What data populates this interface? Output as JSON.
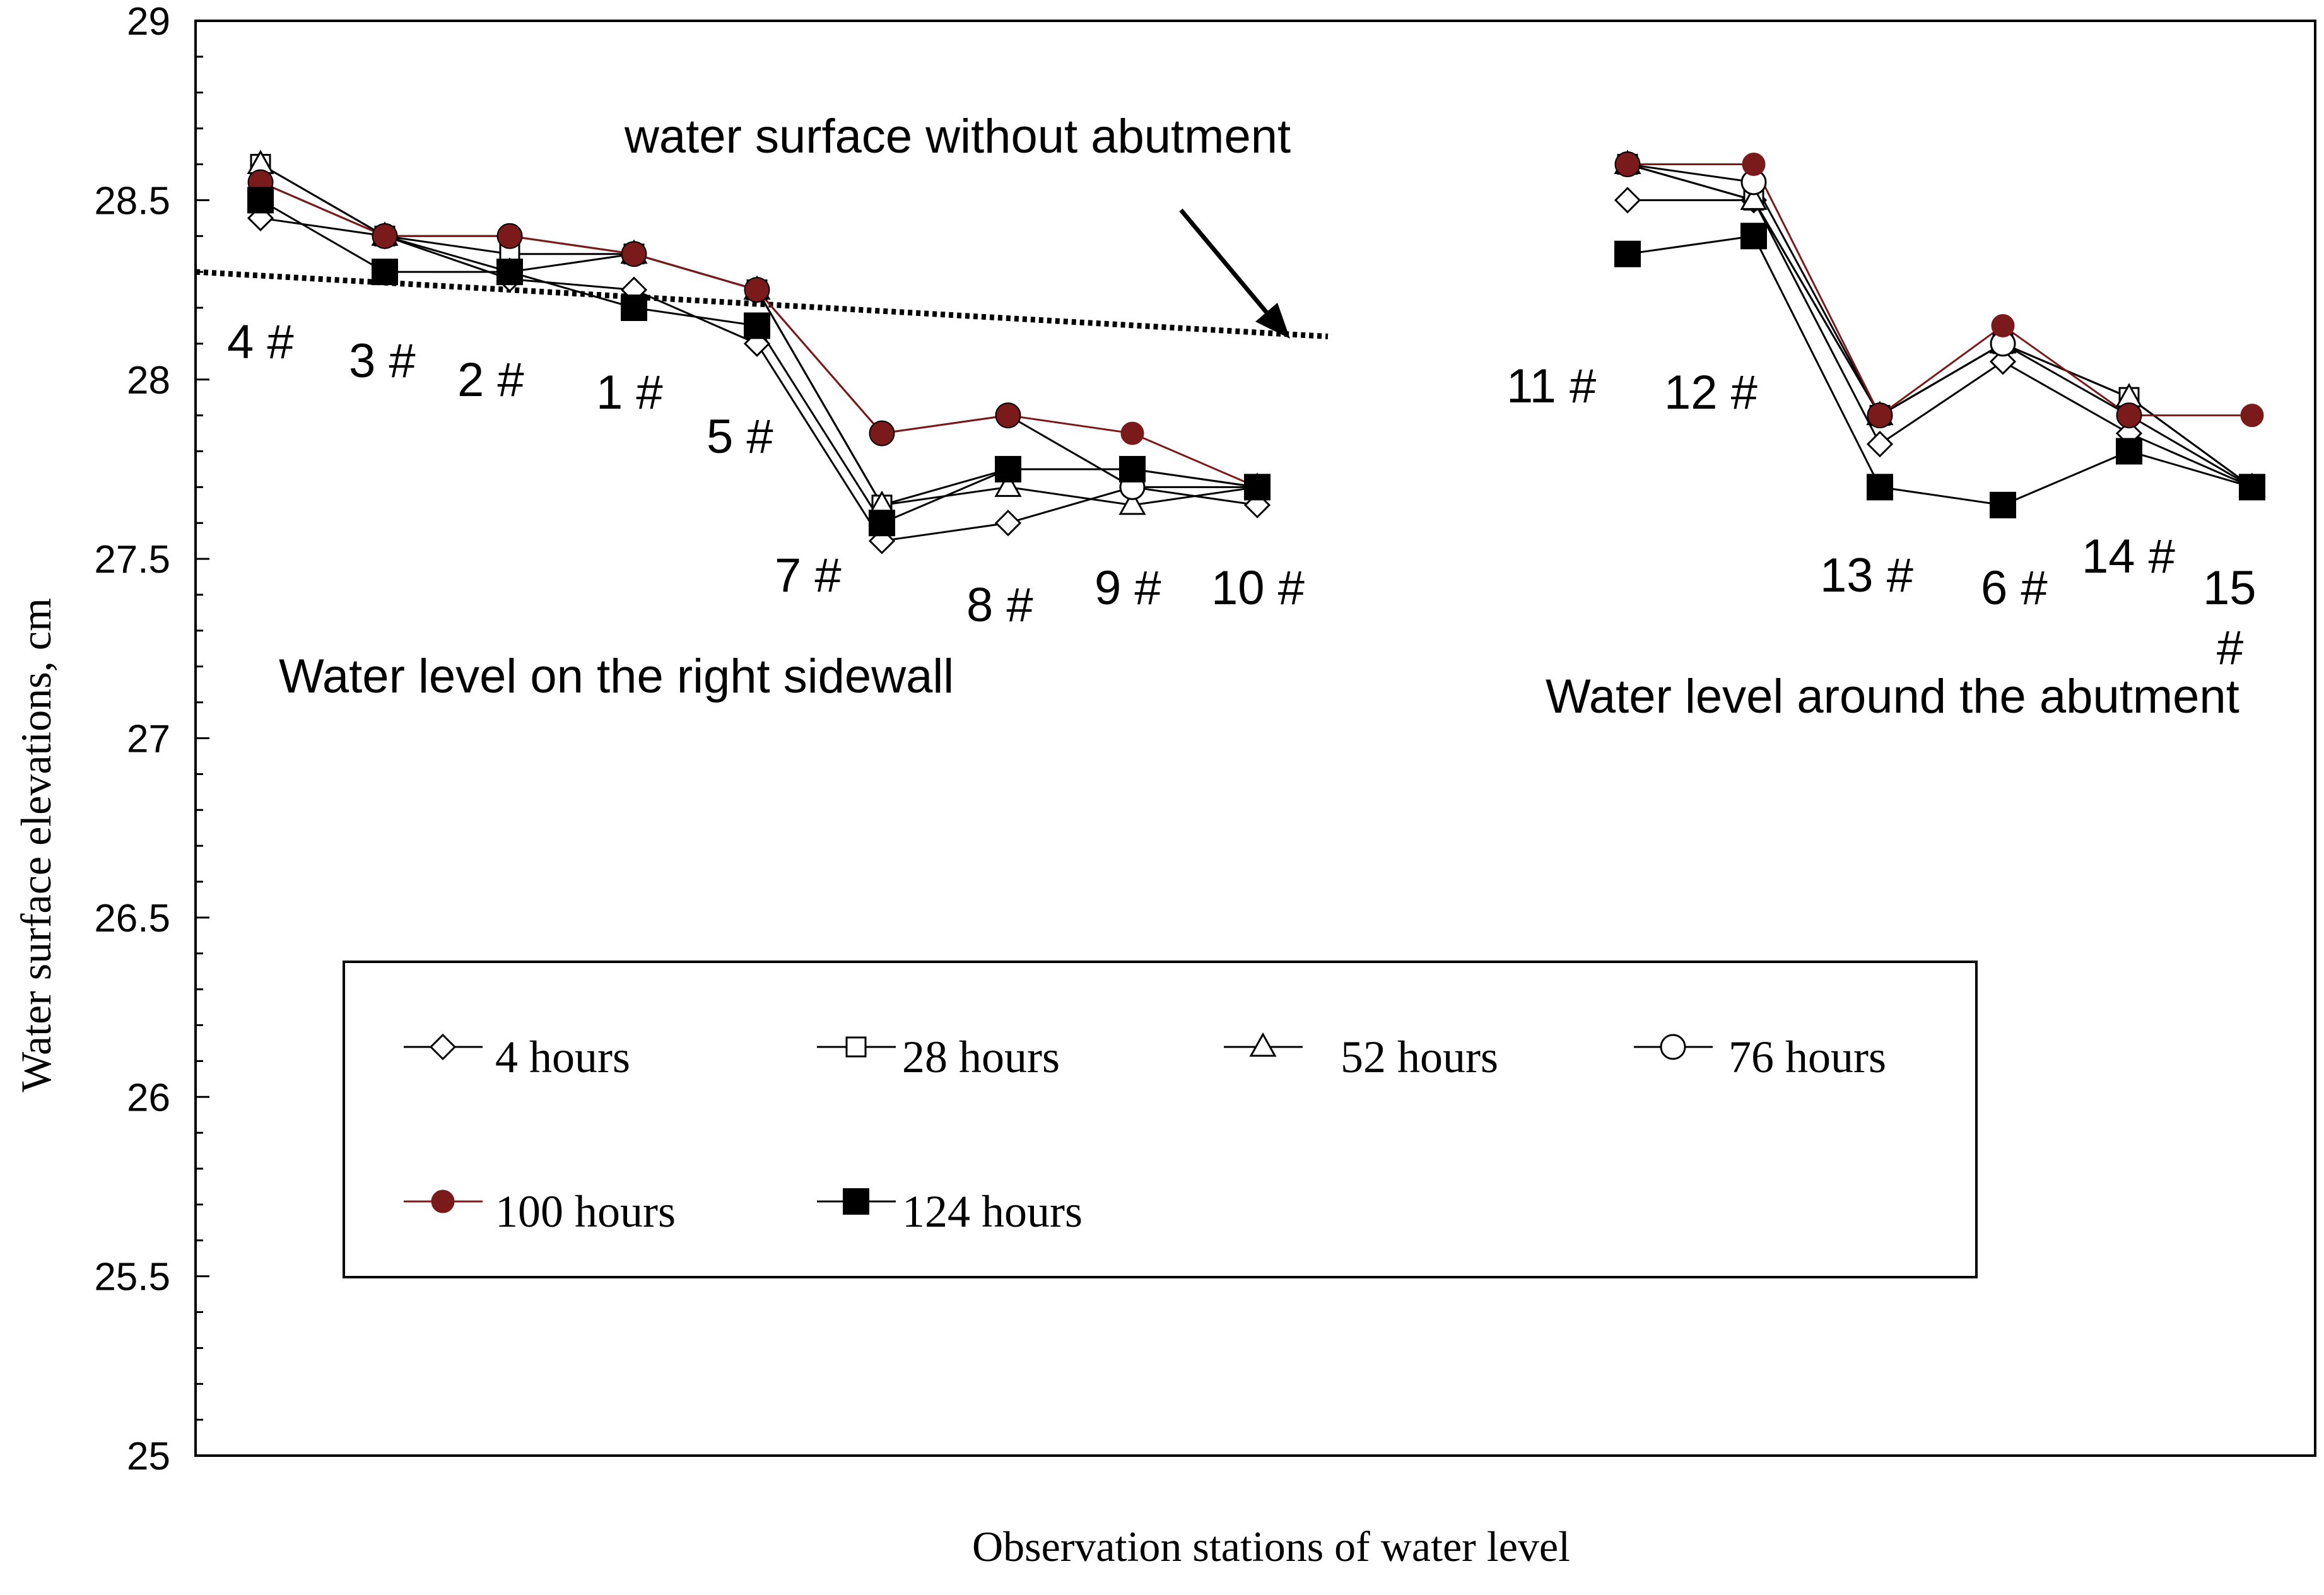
{
  "chart_data": {
    "type": "line",
    "ylabel": "Water surface elevations, cm",
    "xlabel": "Observation stations of water level",
    "ylim": [
      25,
      29
    ],
    "yticks": [
      "25",
      "25.5",
      "26",
      "26.5",
      "27",
      "27.5",
      "28",
      "28.5",
      "29"
    ],
    "groups": [
      {
        "name": "Water level on the right sidewall",
        "stations": [
          "4 #",
          "3 #",
          "2 #",
          "1 #",
          "5 #",
          "7 #",
          "8 #",
          "9 #",
          "10 #"
        ],
        "series": [
          {
            "name": "4 hours",
            "values": [
              28.45,
              28.4,
              28.28,
              28.25,
              28.1,
              27.55,
              27.6,
              27.7,
              27.65
            ]
          },
          {
            "name": "28 hours",
            "values": [
              28.6,
              28.4,
              28.35,
              28.35,
              28.25,
              27.65,
              27.75,
              27.75,
              27.7
            ]
          },
          {
            "name": "52 hours",
            "values": [
              28.6,
              28.4,
              28.3,
              28.35,
              28.25,
              27.65,
              27.7,
              27.65,
              27.7
            ]
          },
          {
            "name": "76 hours",
            "values": [
              28.55,
              28.4,
              28.4,
              28.35,
              28.25,
              27.85,
              27.9,
              27.7,
              27.7
            ]
          },
          {
            "name": "100 hours",
            "values": [
              28.55,
              28.4,
              28.4,
              28.35,
              28.25,
              27.85,
              27.9,
              27.85,
              27.7
            ]
          },
          {
            "name": "124 hours",
            "values": [
              28.5,
              28.3,
              28.3,
              28.2,
              28.15,
              27.6,
              27.75,
              27.75,
              27.7
            ]
          }
        ]
      },
      {
        "name": "Water level around the abutment",
        "stations": [
          "11 #",
          "12 #",
          "13 #",
          "6 #",
          "14 #",
          "15 #"
        ],
        "series": [
          {
            "name": "4 hours",
            "values": [
              28.5,
              28.5,
              27.82,
              28.05,
              27.85,
              27.7
            ]
          },
          {
            "name": "28 hours",
            "values": [
              28.6,
              28.5,
              27.9,
              28.1,
              27.95,
              27.7
            ]
          },
          {
            "name": "52 hours",
            "values": [
              28.6,
              28.5,
              27.9,
              28.1,
              27.95,
              27.7
            ]
          },
          {
            "name": "76 hours",
            "values": [
              28.6,
              28.55,
              27.9,
              28.1,
              27.9,
              27.7
            ]
          },
          {
            "name": "100 hours",
            "values": [
              28.6,
              28.6,
              27.9,
              28.15,
              27.9,
              27.9
            ]
          },
          {
            "name": "124 hours",
            "values": [
              28.35,
              28.4,
              27.7,
              27.65,
              27.8,
              27.7
            ]
          }
        ]
      }
    ],
    "reference_line": {
      "name": "water surface without abutment",
      "from": 28.3,
      "to": 28.12
    },
    "annotations": {
      "arrow_label": "water surface without abutment",
      "group1_label": "Water level on the right sidewall",
      "group2_label": "Water level around the abutment"
    },
    "legend": [
      "4 hours",
      "28 hours",
      "52 hours",
      "76 hours",
      "100 hours",
      "124 hours"
    ],
    "series_styles": {
      "4 hours": {
        "marker": "diamond-open",
        "color": "#000000"
      },
      "28 hours": {
        "marker": "square-open",
        "color": "#000000"
      },
      "52 hours": {
        "marker": "triangle-open",
        "color": "#000000"
      },
      "76 hours": {
        "marker": "circle-open",
        "color": "#000000"
      },
      "100 hours": {
        "marker": "circle-filled",
        "color": "#7a1a1a"
      },
      "124 hours": {
        "marker": "square-filled",
        "color": "#000000"
      }
    }
  }
}
